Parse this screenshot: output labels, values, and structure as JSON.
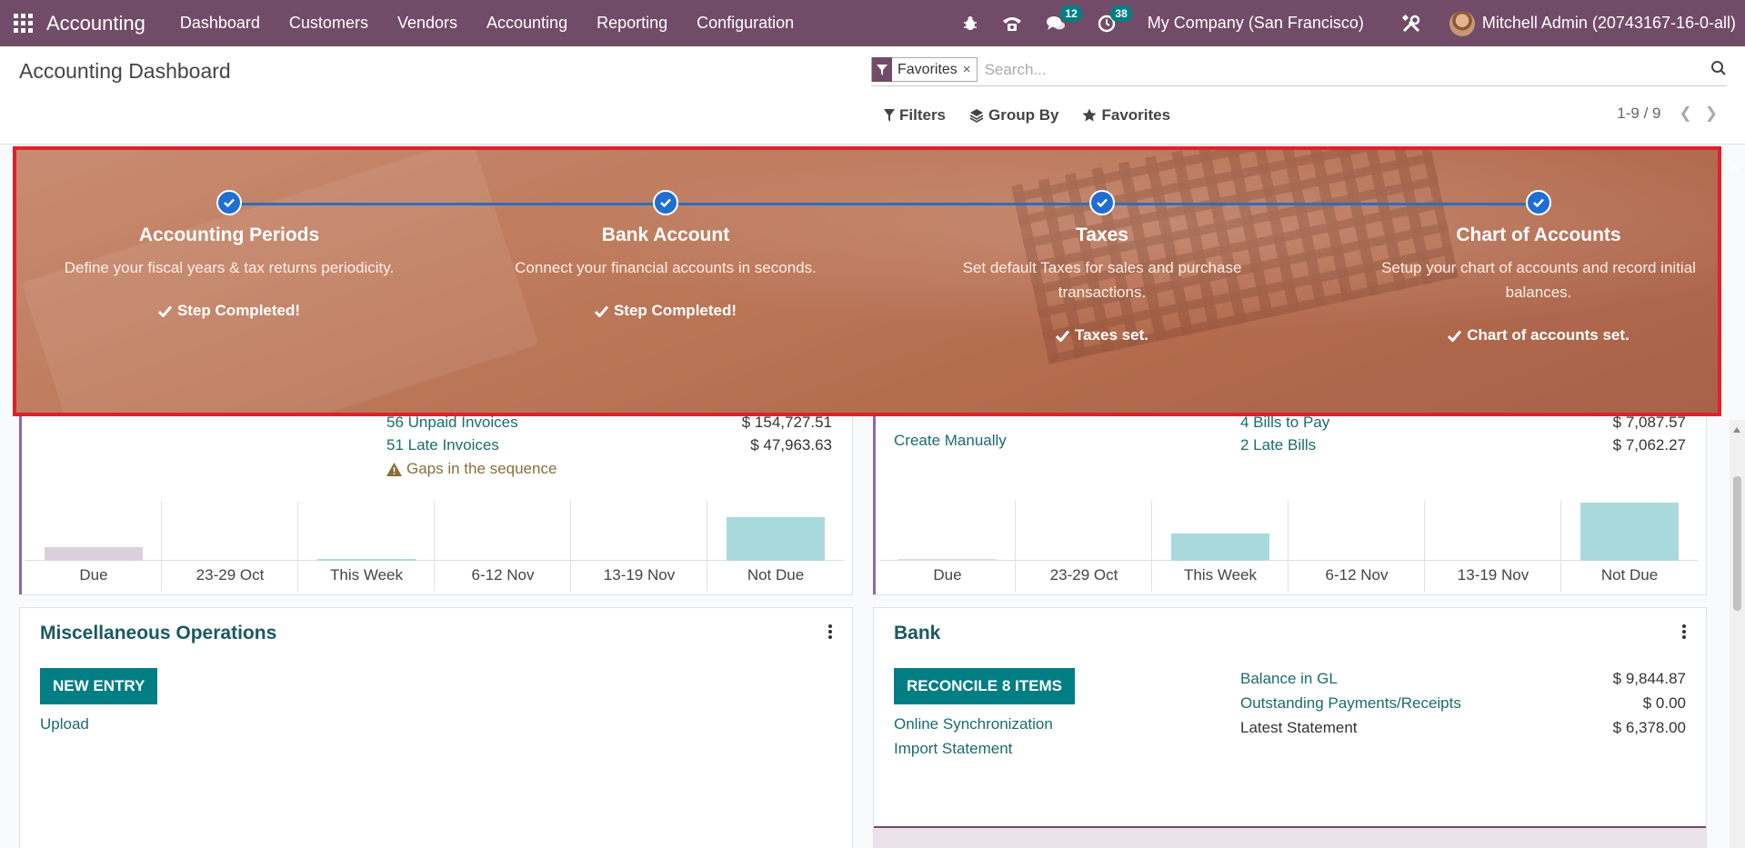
{
  "navbar": {
    "brand": "Accounting",
    "menu": [
      "Dashboard",
      "Customers",
      "Vendors",
      "Accounting",
      "Reporting",
      "Configuration"
    ],
    "messages_count": "12",
    "activities_count": "38",
    "company": "My Company (San Francisco)",
    "user": "Mitchell Admin (20743167-16-0-all)"
  },
  "control": {
    "title": "Accounting Dashboard",
    "facet": "Favorites",
    "search_placeholder": "Search...",
    "filters": "Filters",
    "group_by": "Group By",
    "favorites": "Favorites",
    "pager": "1-9 / 9"
  },
  "banner": {
    "steps": [
      {
        "title": "Accounting Periods",
        "desc": "Define your fiscal years & tax returns periodicity.",
        "status": "Step Completed!"
      },
      {
        "title": "Bank Account",
        "desc": "Connect your financial accounts in seconds.",
        "status": "Step Completed!"
      },
      {
        "title": "Taxes",
        "desc": "Set default Taxes for sales and purchase transactions.",
        "status": "Taxes set."
      },
      {
        "title": "Chart of Accounts",
        "desc": "Setup your chart of accounts and record initial balances.",
        "status": "Chart of accounts set."
      }
    ]
  },
  "sales_card": {
    "unpaid": "56 Unpaid Invoices",
    "unpaid_amount": "$ 154,727.51",
    "late": "51 Late Invoices",
    "late_amount": "$ 47,963.63",
    "gaps": "Gaps in the sequence"
  },
  "purchase_card": {
    "create_manually": "Create Manually",
    "bills_to_pay": "4 Bills to Pay",
    "bills_amount": "$ 7,087.57",
    "late": "2 Late Bills",
    "late_amount": "$ 7,062.27"
  },
  "chart_data": [
    {
      "type": "bar",
      "categories": [
        "Due",
        "23-29 Oct",
        "This Week",
        "6-12 Nov",
        "13-19 Nov",
        "Not Due"
      ],
      "values": [
        14,
        0,
        1,
        0,
        0,
        44
      ],
      "colors": [
        "#dccfdc",
        "#a8dadc",
        "#a8dadc",
        "#a8dadc",
        "#a8dadc",
        "#a8dadc"
      ]
    },
    {
      "type": "bar",
      "categories": [
        "Due",
        "23-29 Oct",
        "This Week",
        "6-12 Nov",
        "13-19 Nov",
        "Not Due"
      ],
      "values": [
        2,
        0,
        27,
        0,
        0,
        58
      ],
      "colors": [
        "#dddddd",
        "#a8dadc",
        "#a8dadc",
        "#a8dadc",
        "#a8dadc",
        "#a8dadc"
      ]
    }
  ],
  "misc_card": {
    "title": "Miscellaneous Operations",
    "new_entry": "NEW ENTRY",
    "upload": "Upload"
  },
  "bank_card": {
    "title": "Bank",
    "reconcile": "RECONCILE 8 ITEMS",
    "online_sync": "Online Synchronization",
    "import": "Import Statement",
    "balance_label": "Balance in GL",
    "balance_value": "$ 9,844.87",
    "outstanding_label": "Outstanding Payments/Receipts",
    "outstanding_value": "$ 0.00",
    "latest_label": "Latest Statement",
    "latest_value": "$ 6,378.00"
  }
}
